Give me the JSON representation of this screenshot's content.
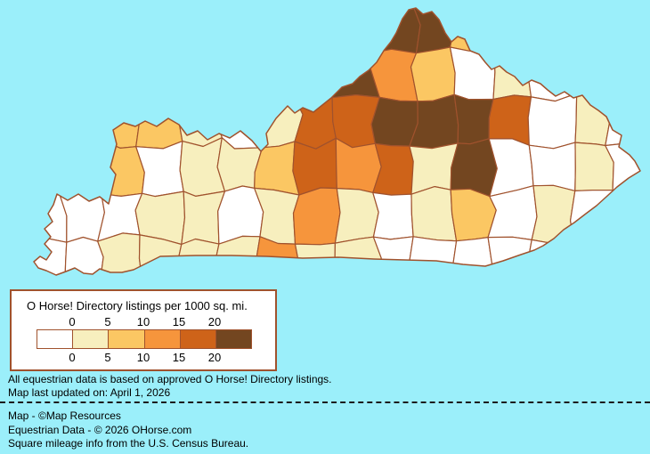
{
  "page": {
    "background_color": "#9BEFFA"
  },
  "map": {
    "region": "kentucky-counties-choropleth",
    "border_color": "#A0522D",
    "water_color": "#9BEFFA",
    "class_colors": [
      "#FFFFFF",
      "#F7EFBE",
      "#FBC763",
      "#F6953C",
      "#CE6319",
      "#734620"
    ],
    "grid": {
      "cols": 16,
      "rows": 6,
      "classes": [
        [
          0,
          0,
          0,
          0,
          0,
          0,
          0,
          0,
          5,
          5,
          5,
          2,
          0,
          0,
          0,
          0
        ],
        [
          0,
          0,
          0,
          0,
          0,
          0,
          0,
          0,
          5,
          3,
          2,
          0,
          1,
          0,
          1,
          0
        ],
        [
          0,
          0,
          2,
          2,
          1,
          0,
          1,
          4,
          4,
          5,
          5,
          5,
          4,
          0,
          1,
          0
        ],
        [
          0,
          2,
          2,
          0,
          1,
          1,
          2,
          4,
          3,
          4,
          1,
          5,
          0,
          0,
          1,
          0
        ],
        [
          0,
          0,
          0,
          1,
          1,
          0,
          1,
          3,
          1,
          0,
          1,
          2,
          0,
          1,
          0,
          0
        ],
        [
          0,
          0,
          1,
          1,
          1,
          1,
          3,
          1,
          1,
          0,
          0,
          0,
          0,
          0,
          0,
          0
        ]
      ]
    }
  },
  "legend": {
    "title": "O Horse! Directory listings per 1000 sq. mi.",
    "tick_labels": [
      "0",
      "5",
      "10",
      "15",
      "20"
    ],
    "swatch_colors": [
      "#FFFFFF",
      "#F7EFBE",
      "#FBC763",
      "#F6953C",
      "#CE6319",
      "#734620"
    ]
  },
  "notes": {
    "line1": "All equestrian data is based on approved O Horse! Directory listings.",
    "line2": "Map last updated on: April 1, 2026"
  },
  "credits": {
    "line1": "Map - ©Map Resources",
    "line2": "Equestrian Data - © 2026 OHorse.com",
    "line3": "Square mileage info from the U.S. Census Bureau."
  }
}
